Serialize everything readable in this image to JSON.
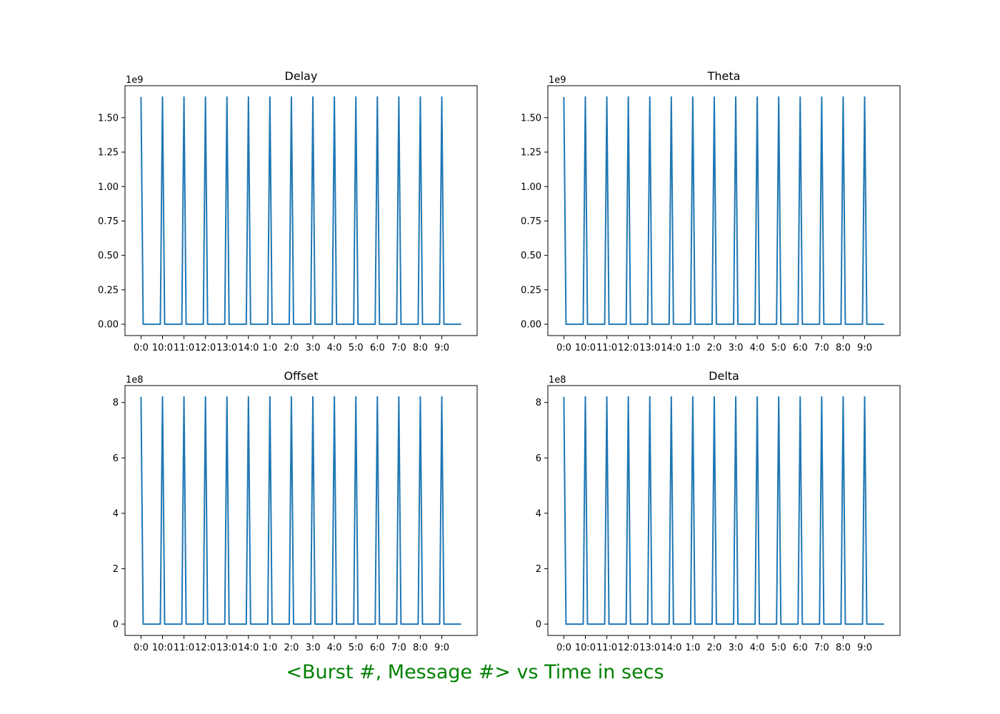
{
  "footer": {
    "text": "<Burst #, Message #> vs Time in secs",
    "color": "#008000"
  },
  "line_color": "#1f77b4",
  "chart_data": [
    {
      "type": "line",
      "title": "Delay",
      "offset_text": "1e9",
      "x_tick_labels": [
        "0:0",
        "10:0",
        "11:0",
        "12:0",
        "13:0",
        "14:0",
        "1:0",
        "2:0",
        "3:0",
        "4:0",
        "5:0",
        "6:0",
        "7:0",
        "8:0",
        "9:0"
      ],
      "x_tick_positions": [
        0,
        10,
        20,
        30,
        40,
        50,
        60,
        70,
        80,
        90,
        100,
        110,
        120,
        130,
        140
      ],
      "x_range": [
        -7.45,
        156.45
      ],
      "yticks": [
        0,
        0.25,
        0.5,
        0.75,
        1.0,
        1.25,
        1.5
      ],
      "ytick_labels": [
        "0.00",
        "0.25",
        "0.50",
        "0.75",
        "1.00",
        "1.25",
        "1.50"
      ],
      "ylim": [
        -0.0825,
        1.7325
      ],
      "series": [
        {
          "peak": 1.65,
          "baseline": 0,
          "peak_x": [
            0,
            10,
            20,
            30,
            40,
            50,
            60,
            70,
            80,
            90,
            100,
            110,
            120,
            130,
            140
          ],
          "x_last": 149
        }
      ]
    },
    {
      "type": "line",
      "title": "Theta",
      "offset_text": "1e9",
      "x_tick_labels": [
        "0:0",
        "10:0",
        "11:0",
        "12:0",
        "13:0",
        "14:0",
        "1:0",
        "2:0",
        "3:0",
        "4:0",
        "5:0",
        "6:0",
        "7:0",
        "8:0",
        "9:0"
      ],
      "x_tick_positions": [
        0,
        10,
        20,
        30,
        40,
        50,
        60,
        70,
        80,
        90,
        100,
        110,
        120,
        130,
        140
      ],
      "x_range": [
        -7.45,
        156.45
      ],
      "yticks": [
        0,
        0.25,
        0.5,
        0.75,
        1.0,
        1.25,
        1.5
      ],
      "ytick_labels": [
        "0.00",
        "0.25",
        "0.50",
        "0.75",
        "1.00",
        "1.25",
        "1.50"
      ],
      "ylim": [
        -0.0825,
        1.7325
      ],
      "series": [
        {
          "peak": 1.65,
          "baseline": 0,
          "peak_x": [
            0,
            10,
            20,
            30,
            40,
            50,
            60,
            70,
            80,
            90,
            100,
            110,
            120,
            130,
            140
          ],
          "x_last": 149
        }
      ]
    },
    {
      "type": "line",
      "title": "Offset",
      "offset_text": "1e8",
      "x_tick_labels": [
        "0:0",
        "10:0",
        "11:0",
        "12:0",
        "13:0",
        "14:0",
        "1:0",
        "2:0",
        "3:0",
        "4:0",
        "5:0",
        "6:0",
        "7:0",
        "8:0",
        "9:0"
      ],
      "x_tick_positions": [
        0,
        10,
        20,
        30,
        40,
        50,
        60,
        70,
        80,
        90,
        100,
        110,
        120,
        130,
        140
      ],
      "x_range": [
        -7.45,
        156.45
      ],
      "yticks": [
        0,
        2,
        4,
        6,
        8
      ],
      "ytick_labels": [
        "0",
        "2",
        "4",
        "6",
        "8"
      ],
      "ylim": [
        -0.41,
        8.61
      ],
      "series": [
        {
          "peak": 8.2,
          "baseline": 0,
          "peak_x": [
            0,
            10,
            20,
            30,
            40,
            50,
            60,
            70,
            80,
            90,
            100,
            110,
            120,
            130,
            140
          ],
          "x_last": 149
        }
      ]
    },
    {
      "type": "line",
      "title": "Delta",
      "offset_text": "1e8",
      "x_tick_labels": [
        "0:0",
        "10:0",
        "11:0",
        "12:0",
        "13:0",
        "14:0",
        "1:0",
        "2:0",
        "3:0",
        "4:0",
        "5:0",
        "6:0",
        "7:0",
        "8:0",
        "9:0"
      ],
      "x_tick_positions": [
        0,
        10,
        20,
        30,
        40,
        50,
        60,
        70,
        80,
        90,
        100,
        110,
        120,
        130,
        140
      ],
      "x_range": [
        -7.45,
        156.45
      ],
      "yticks": [
        0,
        2,
        4,
        6,
        8
      ],
      "ytick_labels": [
        "0",
        "2",
        "4",
        "6",
        "8"
      ],
      "ylim": [
        -0.41,
        8.61
      ],
      "series": [
        {
          "peak": 8.2,
          "baseline": 0,
          "peak_x": [
            0,
            10,
            20,
            30,
            40,
            50,
            60,
            70,
            80,
            90,
            100,
            110,
            120,
            130,
            140
          ],
          "x_last": 149
        }
      ]
    }
  ]
}
